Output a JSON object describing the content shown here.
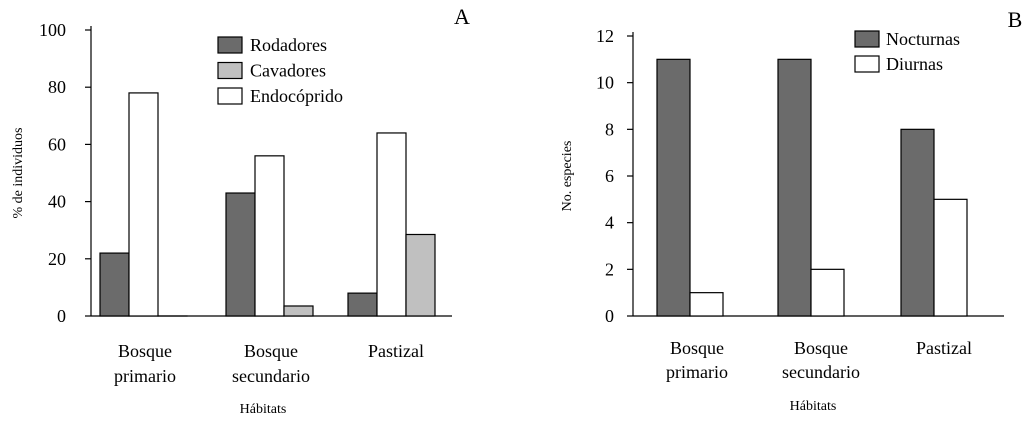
{
  "chart_data": [
    {
      "panel_label": "A",
      "type": "bar",
      "categories": [
        [
          "Bosque",
          "primario"
        ],
        [
          "Bosque",
          "secundario"
        ],
        [
          "Pastizal"
        ]
      ],
      "xlabel": "Hábitats",
      "ylabel": "% de individuos",
      "ylim": [
        0,
        100
      ],
      "yticks": [
        0,
        20,
        40,
        60,
        80,
        100
      ],
      "grid": false,
      "legend": "top-right",
      "series": [
        {
          "name": "Rodadores",
          "color": "#6b6b6b",
          "values": [
            22,
            43,
            8
          ]
        },
        {
          "name": "Endocóprido",
          "color": "#ffffff",
          "values": [
            78,
            56,
            64
          ]
        },
        {
          "name": "Cavadores",
          "color": "#c0c0c0",
          "values": [
            0,
            3.5,
            28.5
          ]
        }
      ],
      "legend_order": [
        "Rodadores",
        "Cavadores",
        "Endocóprido"
      ]
    },
    {
      "panel_label": "B",
      "type": "bar",
      "categories": [
        [
          "Bosque",
          "primario"
        ],
        [
          "Bosque",
          "secundario"
        ],
        [
          "Pastizal"
        ]
      ],
      "xlabel": "Hábitats",
      "ylabel": "No. especies",
      "ylim": [
        0,
        12
      ],
      "yticks": [
        0,
        2,
        4,
        6,
        8,
        10,
        12
      ],
      "grid": false,
      "legend": "top-right",
      "series": [
        {
          "name": "Nocturnas",
          "color": "#6b6b6b",
          "values": [
            11,
            11,
            8
          ]
        },
        {
          "name": "Diurnas",
          "color": "#ffffff",
          "values": [
            1,
            2,
            5
          ]
        }
      ],
      "legend_order": [
        "Nocturnas",
        "Diurnas"
      ]
    }
  ]
}
